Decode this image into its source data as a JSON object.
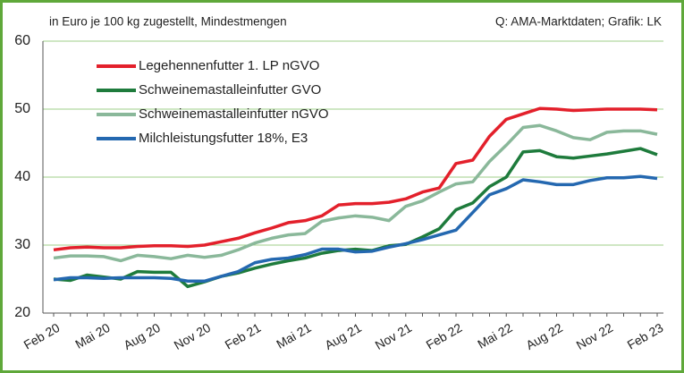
{
  "chart_data": {
    "type": "line",
    "title": "in Euro je 100 kg zugestellt, Mindestmengen",
    "source": "Q: AMA-Marktdaten; Grafik: LK",
    "categories": [
      "Feb 20",
      null,
      null,
      "Mai 20",
      null,
      null,
      "Aug 20",
      null,
      null,
      "Nov 20",
      null,
      null,
      "Feb 21",
      null,
      null,
      "Mai 21",
      null,
      null,
      "Aug 21",
      null,
      null,
      "Nov 21",
      null,
      null,
      "Feb 22",
      null,
      null,
      "Mai 22",
      null,
      null,
      "Aug 22",
      null,
      null,
      "Nov 22",
      null,
      null,
      "Feb 23"
    ],
    "series": [
      {
        "name": "Legehennenfutter 1. LP nGVO",
        "color": "#e3202b",
        "values": [
          29.3,
          29.6,
          29.7,
          29.6,
          29.6,
          29.8,
          29.9,
          29.9,
          29.8,
          30.0,
          30.5,
          31.0,
          31.8,
          32.5,
          33.3,
          33.6,
          34.3,
          35.9,
          36.1,
          36.1,
          36.3,
          36.8,
          37.8,
          38.4,
          42.0,
          42.5,
          46.0,
          48.5,
          49.3,
          50.1,
          50.0,
          49.8,
          49.9,
          50.0,
          50.0,
          50.0,
          49.9
        ]
      },
      {
        "name": "Schweinemastalleinfutter GVO",
        "color": "#1e7b3c",
        "values": [
          25.0,
          24.8,
          25.6,
          25.3,
          25.0,
          26.1,
          26.0,
          26.0,
          23.9,
          24.6,
          25.4,
          25.9,
          26.6,
          27.2,
          27.7,
          28.1,
          28.8,
          29.2,
          29.4,
          29.2,
          29.9,
          30.1,
          31.2,
          32.4,
          35.2,
          36.2,
          38.6,
          40.0,
          43.7,
          43.9,
          43.0,
          42.8,
          43.1,
          43.4,
          43.8,
          44.2,
          43.3
        ]
      },
      {
        "name": "Schweinemastalleinfutter nGVO",
        "color": "#8ab89a",
        "values": [
          28.1,
          28.4,
          28.4,
          28.3,
          27.7,
          28.5,
          28.3,
          28.0,
          28.5,
          28.2,
          28.5,
          29.3,
          30.3,
          31.0,
          31.5,
          31.7,
          33.5,
          34.0,
          34.3,
          34.1,
          33.6,
          35.7,
          36.5,
          37.8,
          39.0,
          39.3,
          42.3,
          44.7,
          47.3,
          47.6,
          46.8,
          45.8,
          45.5,
          46.6,
          46.8,
          46.8,
          46.3
        ]
      },
      {
        "name": "Milchleistungsfutter 18%, E3",
        "color": "#2468b0",
        "values": [
          24.9,
          25.2,
          25.2,
          25.1,
          25.2,
          25.2,
          25.2,
          25.1,
          24.7,
          24.7,
          25.4,
          26.1,
          27.4,
          27.9,
          28.1,
          28.6,
          29.4,
          29.4,
          29.0,
          29.1,
          29.7,
          30.2,
          30.8,
          31.5,
          32.2,
          34.8,
          37.4,
          38.3,
          39.6,
          39.3,
          38.9,
          38.9,
          39.5,
          39.9,
          39.9,
          40.1,
          39.8
        ]
      }
    ],
    "ylim": [
      20,
      60
    ],
    "yticks": [
      20,
      30,
      40,
      50,
      60
    ],
    "grid": true
  }
}
